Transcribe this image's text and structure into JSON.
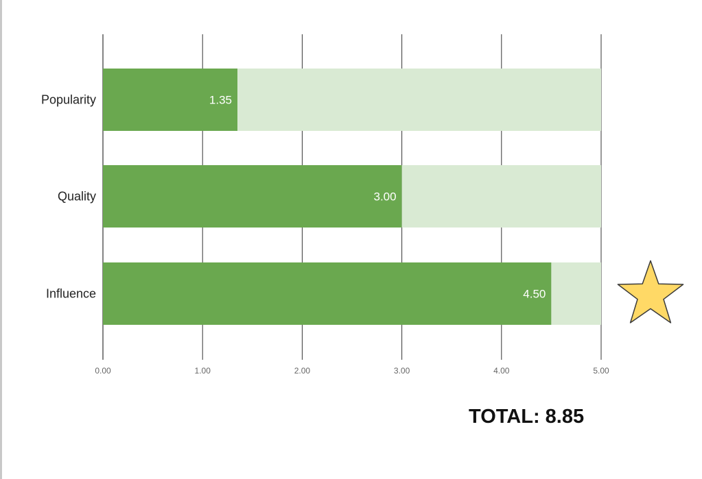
{
  "chart_data": {
    "type": "bar",
    "orientation": "horizontal",
    "stacked": true,
    "categories": [
      "Popularity",
      "Quality",
      "Influence"
    ],
    "series": [
      {
        "values": [
          1.35,
          3.0,
          4.5
        ],
        "color": "#6aa84f",
        "data_labels": [
          "1.35",
          "3.00",
          "4.50"
        ]
      },
      {
        "values": [
          3.65,
          2.0,
          0.5
        ],
        "color": "#d9ead3"
      }
    ],
    "xlim": [
      0,
      5
    ],
    "xticks": [
      "0.00",
      "1.00",
      "2.00",
      "3.00",
      "4.00",
      "5.00"
    ],
    "grid": "vertical",
    "legend": "none",
    "title": "",
    "xlabel": "",
    "ylabel": ""
  },
  "annotations": {
    "total_text": "TOTAL: 8.85",
    "star_icon": "star-icon",
    "star_color": "#ffd966",
    "star_row": "Influence"
  }
}
